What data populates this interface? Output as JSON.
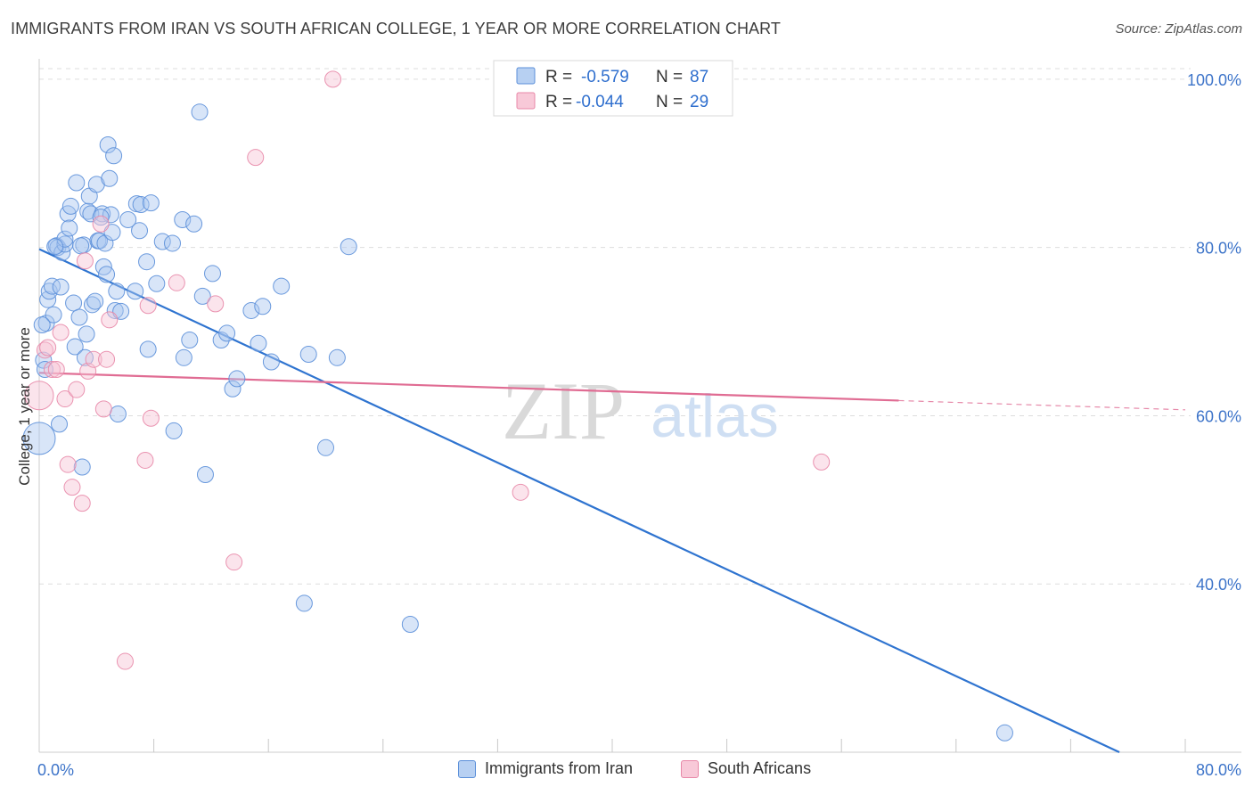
{
  "header": {
    "title": "IMMIGRANTS FROM IRAN VS SOUTH AFRICAN COLLEGE, 1 YEAR OR MORE CORRELATION CHART",
    "source": "Source: ZipAtlas.com"
  },
  "watermark": {
    "zip": "ZIP",
    "atlas": "atlas"
  },
  "colors": {
    "blue": "#5b8fd9",
    "blue_fill": "#a9c6f0",
    "blue_line": "#2f74d0",
    "pink": "#e888a8",
    "pink_fill": "#f6c3d4",
    "pink_line": "#e06c93",
    "axis_text": "#3d74c9",
    "grid": "#dddddd"
  },
  "stats_legend": {
    "rows": [
      {
        "r_label": "R =",
        "r_value": "-0.579",
        "n_label": "N =",
        "n_value": "87"
      },
      {
        "r_label": "R =",
        "r_value": "-0.044",
        "n_label": "N =",
        "n_value": "29"
      }
    ]
  },
  "chart_data": {
    "type": "scatter",
    "title": "IMMIGRANTS FROM IRAN VS SOUTH AFRICAN COLLEGE, 1 YEAR OR MORE CORRELATION CHART",
    "xlabel": "",
    "ylabel": "College, 1 year or more",
    "xlim": [
      0,
      80
    ],
    "ylim": [
      20,
      102
    ],
    "x_tick_labels": [
      "0.0%",
      "80.0%"
    ],
    "y_ticks": [
      40,
      60,
      80,
      100
    ],
    "y_tick_labels": [
      "40.0%",
      "60.0%",
      "80.0%",
      "100.0%"
    ],
    "legend": [
      "Immigrants from Iran",
      "South Africans"
    ],
    "series": [
      {
        "name": "Immigrants from Iran",
        "r": -0.579,
        "n": 87,
        "trend": {
          "x": [
            0,
            75.4
          ],
          "y": [
            79.8,
            20
          ]
        },
        "points": [
          [
            0.0,
            57.3,
            18
          ],
          [
            0.3,
            66.6,
            9
          ],
          [
            0.5,
            71,
            9
          ],
          [
            0.6,
            73.8,
            9
          ],
          [
            0.7,
            74.8,
            9
          ],
          [
            0.9,
            75.4,
            9
          ],
          [
            1.0,
            72,
            9
          ],
          [
            1.2,
            80.2,
            9
          ],
          [
            1.3,
            80,
            9
          ],
          [
            1.4,
            59,
            9
          ],
          [
            1.5,
            75.3,
            9
          ],
          [
            1.6,
            79.4,
            9
          ],
          [
            1.8,
            80.4,
            9
          ],
          [
            1.8,
            81,
            9
          ],
          [
            2.0,
            84,
            9
          ],
          [
            2.1,
            82.3,
            9
          ],
          [
            2.2,
            84.9,
            9
          ],
          [
            2.4,
            73.4,
            9
          ],
          [
            2.5,
            68.2,
            9
          ],
          [
            2.6,
            87.7,
            9
          ],
          [
            2.8,
            71.7,
            9
          ],
          [
            3.0,
            53.9,
            9
          ],
          [
            3.1,
            80.3,
            9
          ],
          [
            3.2,
            66.9,
            9
          ],
          [
            3.3,
            69.7,
            9
          ],
          [
            3.4,
            84.3,
            9
          ],
          [
            3.5,
            86.1,
            9
          ],
          [
            3.6,
            84,
            9
          ],
          [
            3.7,
            73.2,
            9
          ],
          [
            3.9,
            73.6,
            9
          ],
          [
            4.0,
            87.5,
            9
          ],
          [
            4.1,
            80.8,
            9
          ],
          [
            4.2,
            80.8,
            9
          ],
          [
            4.4,
            84,
            9
          ],
          [
            4.5,
            77.7,
            9
          ],
          [
            4.6,
            80.5,
            9
          ],
          [
            4.7,
            76.8,
            9
          ],
          [
            4.8,
            92.2,
            9
          ],
          [
            4.9,
            88.2,
            9
          ],
          [
            5.0,
            83.9,
            9
          ],
          [
            5.1,
            81.8,
            9
          ],
          [
            5.2,
            90.9,
            9
          ],
          [
            5.3,
            72.5,
            9
          ],
          [
            5.4,
            74.8,
            9
          ],
          [
            5.5,
            60.2,
            9
          ],
          [
            6.2,
            83.3,
            9
          ],
          [
            6.7,
            74.8,
            9
          ],
          [
            6.8,
            85.2,
            9
          ],
          [
            7.0,
            82,
            9
          ],
          [
            7.1,
            85.1,
            9
          ],
          [
            7.5,
            78.3,
            9
          ],
          [
            7.6,
            67.9,
            9
          ],
          [
            7.8,
            85.3,
            9
          ],
          [
            8.2,
            75.7,
            9
          ],
          [
            8.6,
            80.7,
            9
          ],
          [
            9.3,
            80.5,
            9
          ],
          [
            9.4,
            58.2,
            9
          ],
          [
            10.0,
            83.3,
            9
          ],
          [
            10.1,
            66.9,
            9
          ],
          [
            10.5,
            69,
            9
          ],
          [
            10.8,
            82.8,
            9
          ],
          [
            11.2,
            96.1,
            9
          ],
          [
            11.4,
            74.2,
            9
          ],
          [
            11.6,
            53,
            9
          ],
          [
            12.1,
            76.9,
            9
          ],
          [
            12.7,
            69,
            9
          ],
          [
            13.1,
            69.8,
            9
          ],
          [
            13.5,
            63.2,
            9
          ],
          [
            13.8,
            64.4,
            9
          ],
          [
            14.8,
            72.5,
            9
          ],
          [
            15.3,
            68.6,
            9
          ],
          [
            15.6,
            73,
            9
          ],
          [
            16.2,
            66.4,
            9
          ],
          [
            16.9,
            75.4,
            9
          ],
          [
            18.5,
            37.7,
            9
          ],
          [
            18.8,
            67.3,
            9
          ],
          [
            20.0,
            56.2,
            9
          ],
          [
            20.8,
            66.9,
            9
          ],
          [
            21.6,
            80.1,
            9
          ],
          [
            25.9,
            35.2,
            9
          ],
          [
            67.4,
            22.3,
            9
          ],
          [
            0.4,
            65.5,
            9
          ],
          [
            0.2,
            70.8,
            9
          ],
          [
            1.1,
            80.1,
            9
          ],
          [
            2.9,
            80.2,
            9
          ],
          [
            5.7,
            72.4,
            9
          ],
          [
            4.3,
            83.6,
            9
          ]
        ]
      },
      {
        "name": "South Africans",
        "r": -0.044,
        "n": 29,
        "trend": {
          "x": [
            0,
            60
          ],
          "y": [
            65.1,
            61.8
          ]
        },
        "trend_dashed": {
          "x": [
            60,
            80
          ],
          "y": [
            61.8,
            60.7
          ]
        },
        "points": [
          [
            0.0,
            62.4,
            16
          ],
          [
            0.4,
            67.8,
            9
          ],
          [
            0.6,
            68.1,
            9
          ],
          [
            0.9,
            65.5,
            9
          ],
          [
            1.2,
            65.5,
            9
          ],
          [
            1.5,
            69.9,
            9
          ],
          [
            1.8,
            62,
            9
          ],
          [
            2.0,
            54.2,
            9
          ],
          [
            2.3,
            51.5,
            9
          ],
          [
            2.6,
            63.1,
            9
          ],
          [
            3.0,
            49.6,
            9
          ],
          [
            3.2,
            78.4,
            9
          ],
          [
            3.4,
            65.3,
            9
          ],
          [
            3.8,
            66.7,
            9
          ],
          [
            4.3,
            82.8,
            9
          ],
          [
            4.5,
            60.8,
            9
          ],
          [
            4.7,
            66.7,
            9
          ],
          [
            4.9,
            71.4,
            9
          ],
          [
            6.0,
            30.8,
            9
          ],
          [
            7.4,
            54.7,
            9
          ],
          [
            7.6,
            73.1,
            9
          ],
          [
            7.8,
            59.7,
            9
          ],
          [
            9.6,
            75.8,
            9
          ],
          [
            12.3,
            73.3,
            9
          ],
          [
            13.6,
            42.6,
            9
          ],
          [
            15.1,
            90.7,
            9
          ],
          [
            20.5,
            100,
            9
          ],
          [
            33.6,
            50.9,
            9
          ],
          [
            54.6,
            54.5,
            9
          ]
        ]
      }
    ]
  },
  "bottom_legend": {
    "items": [
      {
        "label": "Immigrants from Iran"
      },
      {
        "label": "South Africans"
      }
    ]
  }
}
